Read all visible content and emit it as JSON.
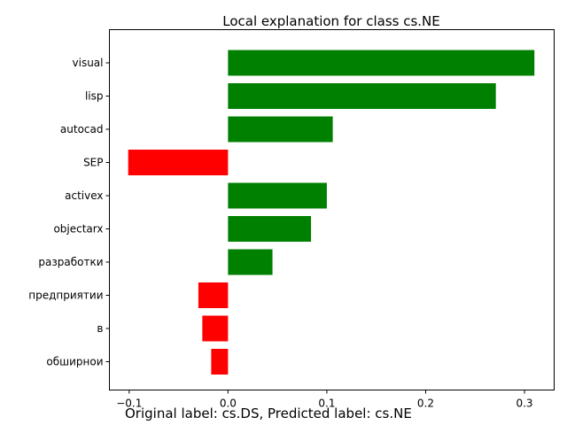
{
  "chart_data": {
    "type": "bar",
    "orientation": "horizontal",
    "title": "Local explanation for class cs.NE",
    "categories": [
      "visual",
      "lisp",
      "autocad",
      "SEP",
      "activex",
      "objectarx",
      "разработки",
      "предприятии",
      "в",
      "обширнои"
    ],
    "values": [
      0.31,
      0.271,
      0.106,
      -0.101,
      0.1,
      0.084,
      0.045,
      -0.03,
      -0.026,
      -0.017
    ],
    "xlim": [
      -0.12,
      0.33
    ],
    "xticks": [
      -0.1,
      0.0,
      0.1,
      0.2,
      0.3
    ],
    "xtick_labels": [
      "−0.1",
      "0.0",
      "0.1",
      "0.2",
      "0.3"
    ],
    "grid": false,
    "colors": {
      "positive": "#008000",
      "negative": "#ff0000"
    }
  },
  "caption": "Original label: cs.DS, Predicted label: cs.NE"
}
